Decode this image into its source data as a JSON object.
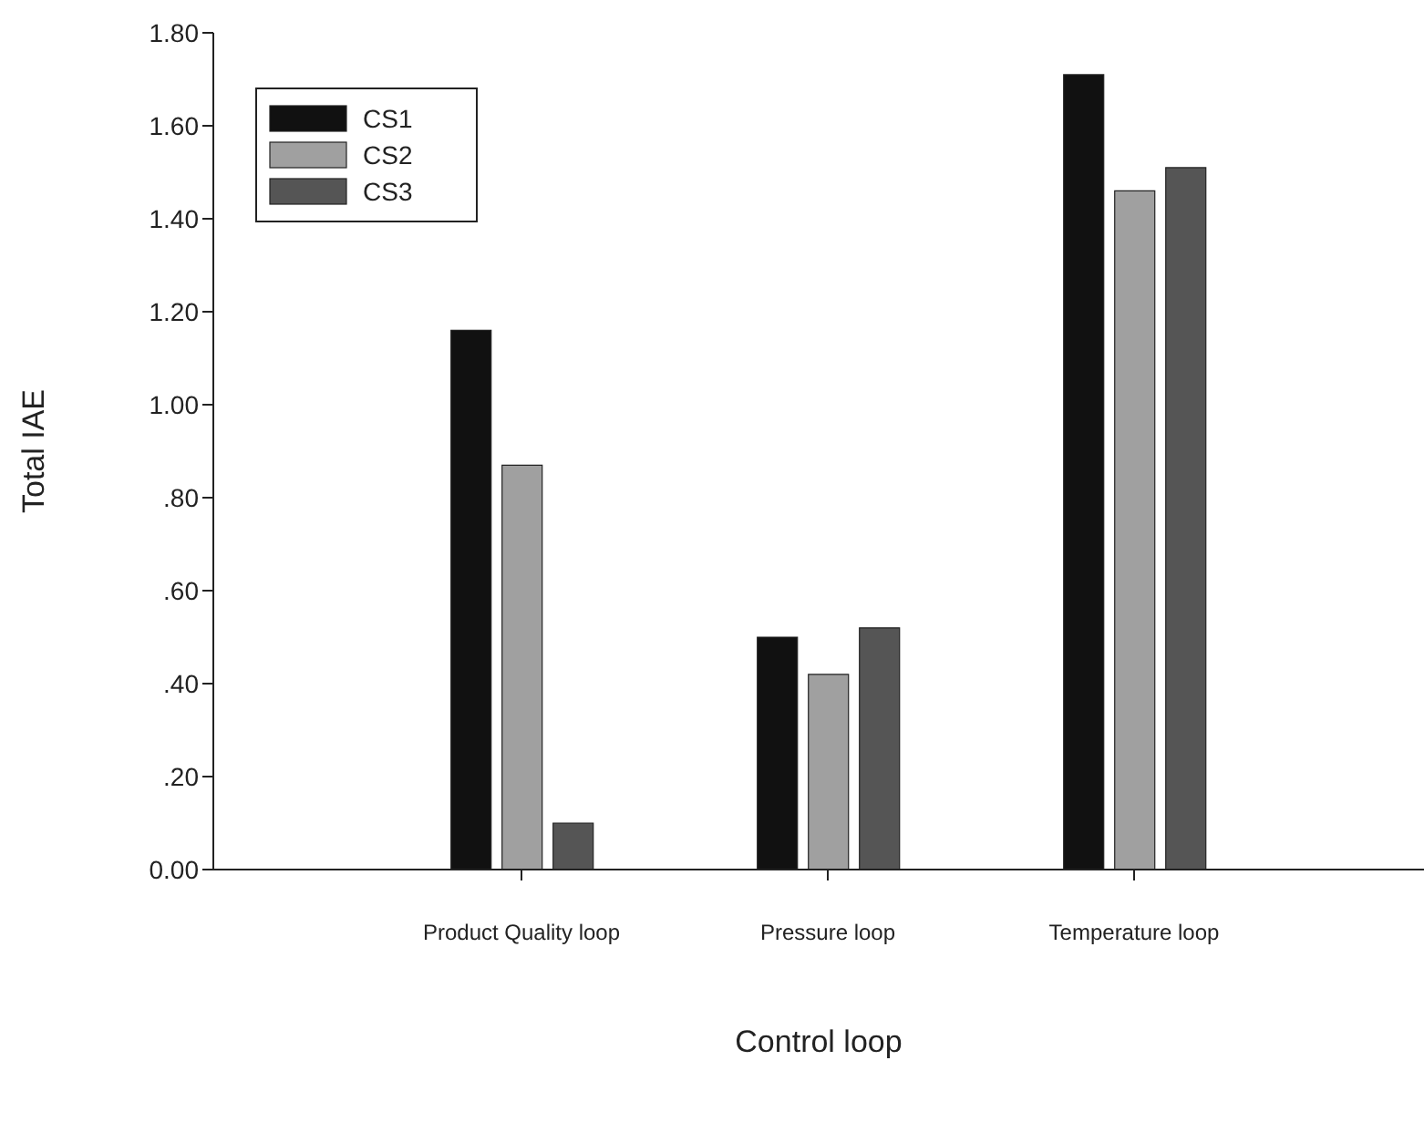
{
  "chart_data": {
    "type": "bar",
    "xlabel": "Control loop",
    "ylabel": "Total IAE",
    "categories": [
      "Product Quality loop",
      "Pressure loop",
      "Temperature loop"
    ],
    "series": [
      {
        "name": "CS1",
        "color": "#111111",
        "values": [
          1.16,
          0.5,
          1.71
        ]
      },
      {
        "name": "CS2",
        "color": "#a0a0a0",
        "values": [
          0.87,
          0.42,
          1.46
        ]
      },
      {
        "name": "CS3",
        "color": "#555555",
        "values": [
          0.1,
          0.52,
          1.51
        ]
      }
    ],
    "ylim": [
      0,
      1.8
    ],
    "yticks": [
      {
        "value": 0,
        "label": "0.00"
      },
      {
        "value": 0.2,
        "label": ".20"
      },
      {
        "value": 0.4,
        "label": ".40"
      },
      {
        "value": 0.6,
        "label": ".60"
      },
      {
        "value": 0.8,
        "label": ".80"
      },
      {
        "value": 1.0,
        "label": "1.00"
      },
      {
        "value": 1.2,
        "label": "1.20"
      },
      {
        "value": 1.4,
        "label": "1.40"
      },
      {
        "value": 1.6,
        "label": "1.60"
      },
      {
        "value": 1.8,
        "label": "1.80"
      }
    ],
    "legend": "top left"
  }
}
